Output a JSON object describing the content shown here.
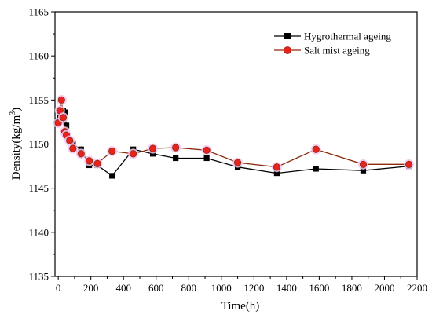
{
  "chart_data": {
    "type": "line",
    "xlabel": "Time(h)",
    "ylabel": {
      "main": "Density(kg/m",
      "sup": "3",
      "close": ")"
    },
    "xlim": [
      -20,
      2200
    ],
    "ylim": [
      1135,
      1165
    ],
    "xticks": [
      0,
      200,
      400,
      600,
      800,
      1000,
      1200,
      1400,
      1600,
      1800,
      2000,
      2200
    ],
    "yticks": [
      1135,
      1140,
      1145,
      1150,
      1155,
      1160,
      1165
    ],
    "grid": false,
    "legend_position": "top-right",
    "series": [
      {
        "name": "Hygrothermal ageing",
        "marker": "square",
        "color": "#000000",
        "x": [
          0,
          10,
          20,
          30,
          40,
          50,
          70,
          90,
          140,
          190,
          240,
          330,
          460,
          580,
          720,
          910,
          1100,
          1340,
          1580,
          1870,
          2150
        ],
        "y": [
          1152.6,
          1153.1,
          1153.6,
          1153.8,
          1153.6,
          1152.1,
          1150.5,
          1150.0,
          1149.4,
          1147.6,
          1147.6,
          1146.4,
          1149.4,
          1148.9,
          1148.4,
          1148.4,
          1147.4,
          1146.7,
          1147.2,
          1147.0,
          1147.5
        ]
      },
      {
        "name": "Salt mist ageing",
        "marker": "circle",
        "color": "#8b2b0b",
        "x": [
          0,
          10,
          20,
          30,
          40,
          50,
          70,
          90,
          140,
          190,
          240,
          330,
          460,
          580,
          720,
          910,
          1100,
          1340,
          1580,
          1870,
          2150
        ],
        "y": [
          1152.4,
          1153.8,
          1155.0,
          1153.0,
          1151.4,
          1151.0,
          1150.4,
          1149.5,
          1148.9,
          1148.1,
          1147.8,
          1149.2,
          1148.9,
          1149.5,
          1149.6,
          1149.3,
          1147.9,
          1147.4,
          1149.4,
          1147.7,
          1147.7
        ]
      }
    ]
  }
}
